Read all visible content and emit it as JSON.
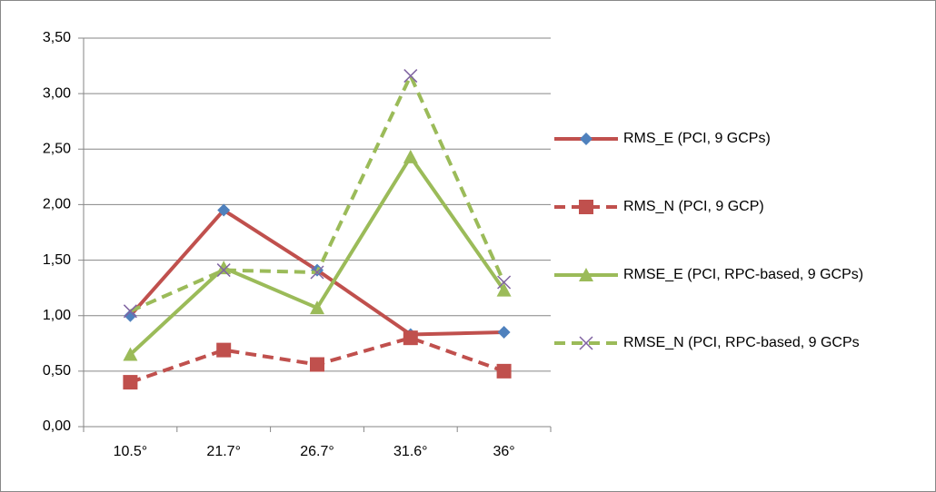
{
  "chart_data": {
    "type": "line",
    "categories": [
      "10.5°",
      "21.7°",
      "26.7°",
      "31.6°",
      "36°"
    ],
    "ylim": [
      0,
      3.5
    ],
    "yticks": [
      {
        "value": 0,
        "label": "0,00"
      },
      {
        "value": 0.5,
        "label": "0,50"
      },
      {
        "value": 1,
        "label": "1,00"
      },
      {
        "value": 1.5,
        "label": "1,50"
      },
      {
        "value": 2,
        "label": "2,00"
      },
      {
        "value": 2.5,
        "label": "2,50"
      },
      {
        "value": 3,
        "label": "3,00"
      },
      {
        "value": 3.5,
        "label": "3,50"
      }
    ],
    "grid": true,
    "legend": "right",
    "series": [
      {
        "name": "RMS_E (PCI, 9 GCPs)",
        "color": "#c0504d",
        "marker": "diamond",
        "marker_color": "#4f81bd",
        "dashed": false,
        "values": [
          1.0,
          1.95,
          1.41,
          0.83,
          0.85
        ]
      },
      {
        "name": "RMS_N (PCI, 9 GCP)",
        "color": "#c0504d",
        "marker": "square",
        "marker_color": "#c0504d",
        "dashed": true,
        "values": [
          0.4,
          0.69,
          0.56,
          0.8,
          0.5
        ]
      },
      {
        "name": "RMSE_E (PCI, RPC-based, 9 GCPs)",
        "color": "#9bbb59",
        "marker": "triangle",
        "marker_color": "#9bbb59",
        "dashed": false,
        "values": [
          0.65,
          1.43,
          1.07,
          2.43,
          1.23
        ]
      },
      {
        "name": "RMSE_N (PCI, RPC-based, 9 GCPs",
        "color": "#9bbb59",
        "marker": "x",
        "marker_color": "#8064a2",
        "dashed": true,
        "values": [
          1.04,
          1.41,
          1.39,
          3.16,
          1.3
        ]
      }
    ]
  }
}
